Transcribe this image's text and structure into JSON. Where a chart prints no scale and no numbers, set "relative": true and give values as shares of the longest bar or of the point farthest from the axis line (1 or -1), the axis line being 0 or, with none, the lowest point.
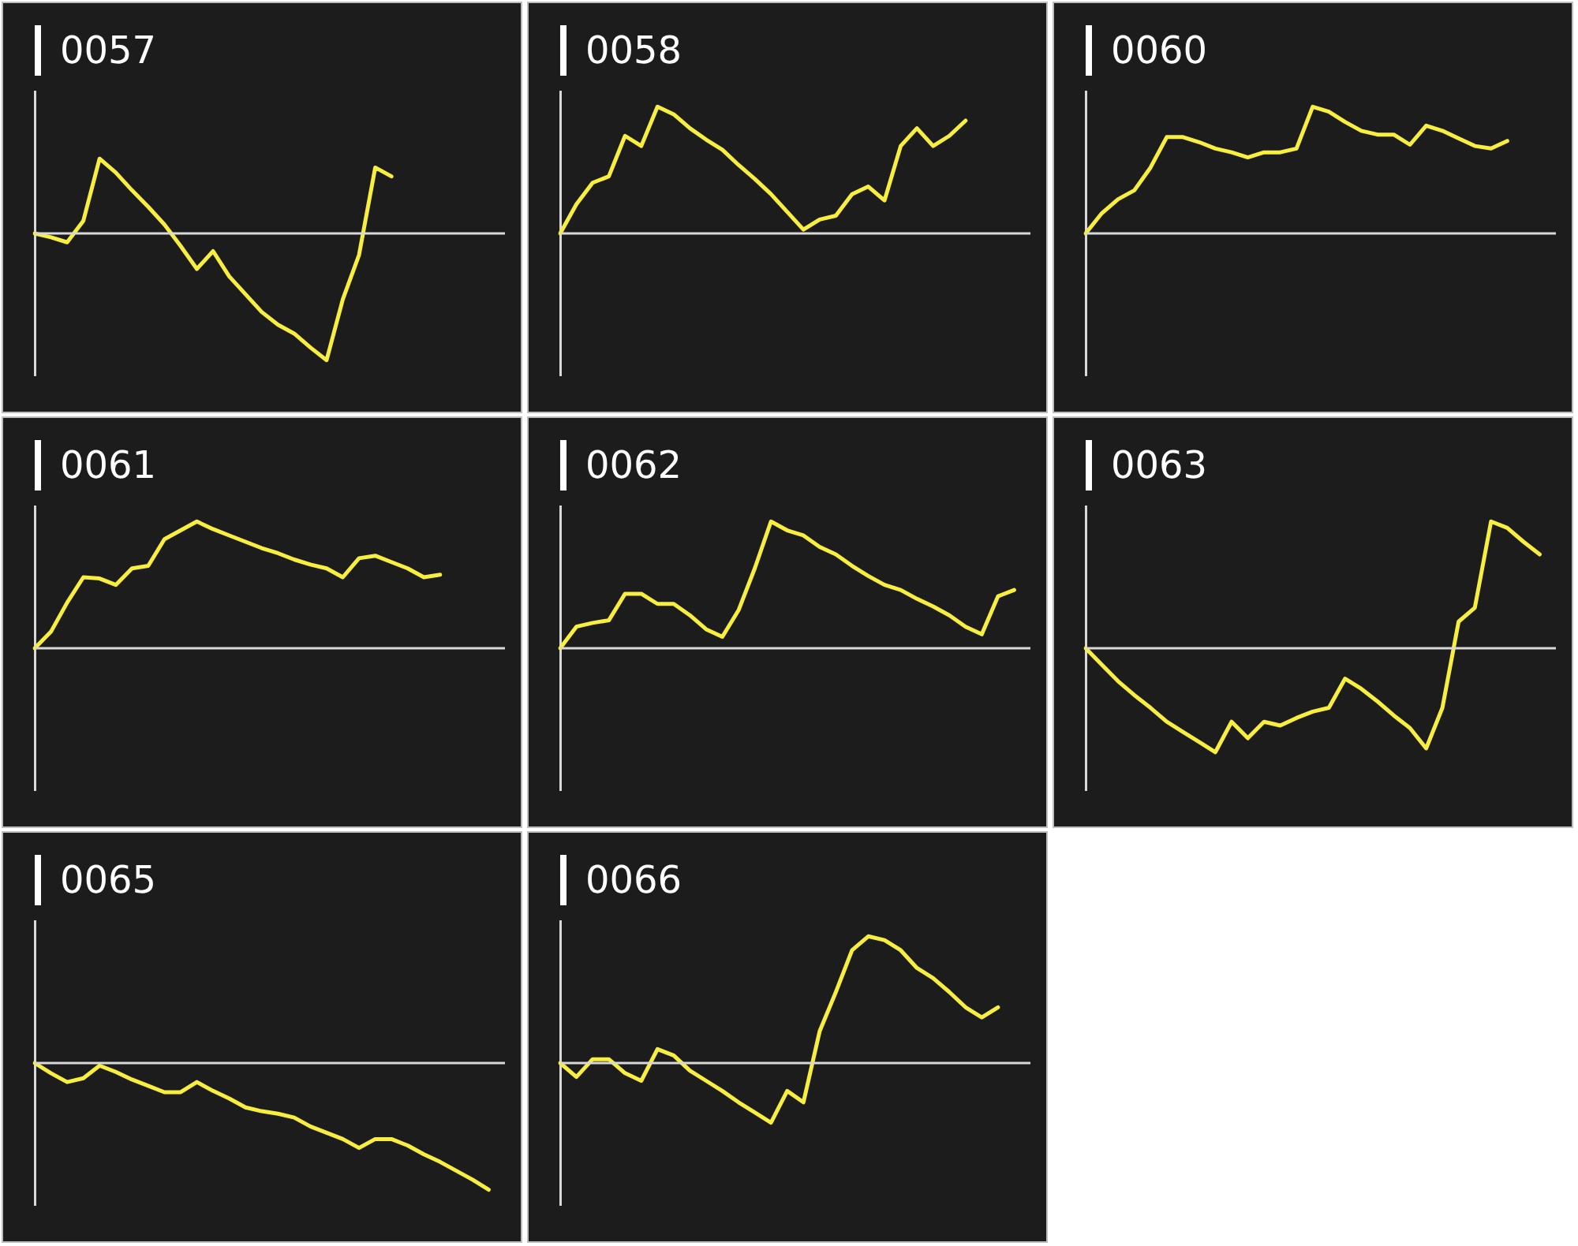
{
  "chart_data": [
    {
      "type": "line",
      "title": "0057",
      "relative": true,
      "categories": [
        null,
        null,
        null,
        null,
        null,
        null,
        null,
        null,
        null,
        null,
        null,
        null,
        null,
        null,
        null,
        null,
        null,
        null,
        null,
        null,
        null,
        null,
        null,
        null,
        null,
        null,
        null,
        null,
        null,
        null
      ],
      "series": [
        {
          "color": "#f7ee3f",
          "values": [
            0,
            -0.03,
            -0.07,
            0.1,
            0.59,
            0.48,
            0.34,
            0.21,
            0.07,
            -0.1,
            -0.28,
            -0.14,
            -0.34,
            -0.48,
            -0.62,
            -0.72,
            -0.79,
            -0.9,
            -1,
            -0.52,
            -0.17,
            0.52,
            0.45,
            null,
            null,
            null,
            null,
            null,
            null,
            null
          ]
        }
      ]
    },
    {
      "type": "line",
      "title": "0058",
      "relative": true,
      "categories": [
        null,
        null,
        null,
        null,
        null,
        null,
        null,
        null,
        null,
        null,
        null,
        null,
        null,
        null,
        null,
        null,
        null,
        null,
        null,
        null,
        null,
        null,
        null,
        null,
        null,
        null,
        null,
        null,
        null,
        null
      ],
      "series": [
        {
          "color": "#f7ee3f",
          "values": [
            0,
            0.23,
            0.4,
            0.45,
            0.77,
            0.69,
            1,
            0.94,
            0.83,
            0.74,
            0.66,
            0.54,
            0.43,
            0.31,
            0.17,
            0.03,
            0.11,
            0.14,
            0.31,
            0.37,
            0.26,
            0.69,
            0.83,
            0.69,
            0.77,
            0.89,
            null,
            null,
            null,
            null
          ]
        }
      ]
    },
    {
      "type": "line",
      "title": "0060",
      "relative": true,
      "categories": [
        null,
        null,
        null,
        null,
        null,
        null,
        null,
        null,
        null,
        null,
        null,
        null,
        null,
        null,
        null,
        null,
        null,
        null,
        null,
        null,
        null,
        null,
        null,
        null,
        null,
        null,
        null,
        null,
        null,
        null
      ],
      "series": [
        {
          "color": "#f7ee3f",
          "values": [
            0,
            0.16,
            0.27,
            0.34,
            0.52,
            0.76,
            0.76,
            0.72,
            0.67,
            0.64,
            0.6,
            0.64,
            0.64,
            0.67,
            1,
            0.96,
            0.88,
            0.81,
            0.78,
            0.78,
            0.7,
            0.85,
            0.81,
            0.75,
            0.69,
            0.67,
            0.73,
            null,
            null,
            null
          ]
        }
      ]
    },
    {
      "type": "line",
      "title": "0061",
      "relative": true,
      "categories": [
        null,
        null,
        null,
        null,
        null,
        null,
        null,
        null,
        null,
        null,
        null,
        null,
        null,
        null,
        null,
        null,
        null,
        null,
        null,
        null,
        null,
        null,
        null,
        null,
        null,
        null,
        null,
        null,
        null,
        null
      ],
      "series": [
        {
          "color": "#f7ee3f",
          "values": [
            0,
            0.13,
            0.36,
            0.56,
            0.55,
            0.5,
            0.63,
            0.65,
            0.86,
            0.93,
            1,
            0.94,
            0.89,
            0.84,
            0.79,
            0.75,
            0.7,
            0.66,
            0.63,
            0.56,
            0.71,
            0.73,
            0.68,
            0.63,
            0.56,
            0.58,
            null,
            null,
            null,
            null
          ]
        }
      ]
    },
    {
      "type": "line",
      "title": "0062",
      "relative": true,
      "categories": [
        null,
        null,
        null,
        null,
        null,
        null,
        null,
        null,
        null,
        null,
        null,
        null,
        null,
        null,
        null,
        null,
        null,
        null,
        null,
        null,
        null,
        null,
        null,
        null,
        null,
        null,
        null,
        null,
        null,
        null
      ],
      "series": [
        {
          "color": "#f7ee3f",
          "values": [
            0,
            0.17,
            0.2,
            0.22,
            0.43,
            0.43,
            0.35,
            0.35,
            0.26,
            0.15,
            0.09,
            0.3,
            0.63,
            1,
            0.93,
            0.89,
            0.8,
            0.74,
            0.65,
            0.57,
            0.5,
            0.46,
            0.39,
            0.33,
            0.26,
            0.17,
            0.11,
            0.41,
            0.46,
            null
          ]
        }
      ]
    },
    {
      "type": "line",
      "title": "0063",
      "relative": true,
      "categories": [
        null,
        null,
        null,
        null,
        null,
        null,
        null,
        null,
        null,
        null,
        null,
        null,
        null,
        null,
        null,
        null,
        null,
        null,
        null,
        null,
        null,
        null,
        null,
        null,
        null,
        null,
        null,
        null,
        null,
        null
      ],
      "series": [
        {
          "color": "#f7ee3f",
          "values": [
            0,
            -0.13,
            -0.26,
            -0.37,
            -0.47,
            -0.58,
            -0.66,
            -0.74,
            -0.82,
            -0.58,
            -0.71,
            -0.58,
            -0.61,
            -0.55,
            -0.5,
            -0.47,
            -0.24,
            -0.32,
            -0.42,
            -0.53,
            -0.63,
            -0.79,
            -0.47,
            0.21,
            0.32,
            1,
            0.95,
            0.84,
            0.74,
            null
          ]
        }
      ]
    },
    {
      "type": "line",
      "title": "0065",
      "relative": true,
      "categories": [
        null,
        null,
        null,
        null,
        null,
        null,
        null,
        null,
        null,
        null,
        null,
        null,
        null,
        null,
        null,
        null,
        null,
        null,
        null,
        null,
        null,
        null,
        null,
        null,
        null,
        null,
        null,
        null,
        null,
        null
      ],
      "series": [
        {
          "color": "#f7ee3f",
          "values": [
            0,
            -0.08,
            -0.15,
            -0.12,
            -0.02,
            -0.07,
            -0.13,
            -0.18,
            -0.23,
            -0.23,
            -0.15,
            -0.22,
            -0.28,
            -0.35,
            -0.38,
            -0.4,
            -0.43,
            -0.5,
            -0.55,
            -0.6,
            -0.67,
            -0.6,
            -0.6,
            -0.65,
            -0.72,
            -0.78,
            -0.85,
            -0.92,
            -1,
            null
          ]
        }
      ]
    },
    {
      "type": "line",
      "title": "0066",
      "relative": true,
      "categories": [
        null,
        null,
        null,
        null,
        null,
        null,
        null,
        null,
        null,
        null,
        null,
        null,
        null,
        null,
        null,
        null,
        null,
        null,
        null,
        null,
        null,
        null,
        null,
        null,
        null,
        null,
        null,
        null,
        null,
        null
      ],
      "series": [
        {
          "color": "#f7ee3f",
          "values": [
            0,
            -0.11,
            0.03,
            0.03,
            -0.08,
            -0.14,
            0.11,
            0.06,
            -0.06,
            -0.14,
            -0.22,
            -0.31,
            -0.39,
            -0.47,
            -0.22,
            -0.31,
            0.25,
            0.56,
            0.89,
            1,
            0.97,
            0.89,
            0.75,
            0.67,
            0.56,
            0.44,
            0.36,
            0.44,
            null,
            null
          ]
        }
      ]
    }
  ]
}
